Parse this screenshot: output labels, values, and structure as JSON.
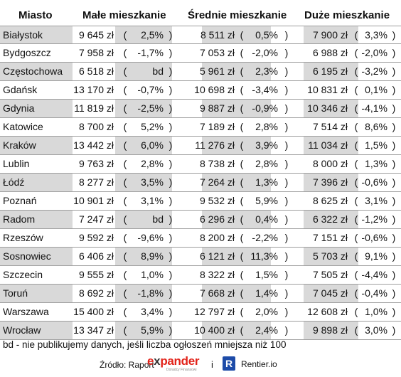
{
  "headers": {
    "city": "Miasto",
    "small": "Małe mieszkanie",
    "medium": "Średnie mieszkanie",
    "large": "Duże mieszkanie"
  },
  "rows": [
    {
      "city": "Białystok",
      "small_price": "9 645 zł",
      "small_change": "2,5%",
      "medium_price": "8 511 zł",
      "medium_change": "0,5%",
      "large_price": "7 900 zł",
      "large_change": "3,3%"
    },
    {
      "city": "Bydgoszcz",
      "small_price": "7 958 zł",
      "small_change": "-1,7%",
      "medium_price": "7 053 zł",
      "medium_change": "-2,0%",
      "large_price": "6 988 zł",
      "large_change": "-2,0%"
    },
    {
      "city": "Częstochowa",
      "small_price": "6 518 zł",
      "small_change": "bd",
      "medium_price": "5 961 zł",
      "medium_change": "2,3%",
      "large_price": "6 195 zł",
      "large_change": "-3,2%"
    },
    {
      "city": "Gdańsk",
      "small_price": "13 170 zł",
      "small_change": "-0,7%",
      "medium_price": "10 698 zł",
      "medium_change": "-3,4%",
      "large_price": "10 831 zł",
      "large_change": "0,1%"
    },
    {
      "city": "Gdynia",
      "small_price": "11 819 zł",
      "small_change": "-2,5%",
      "medium_price": "9 887 zł",
      "medium_change": "-0,9%",
      "large_price": "10 346 zł",
      "large_change": "-4,1%"
    },
    {
      "city": "Katowice",
      "small_price": "8 700 zł",
      "small_change": "5,2%",
      "medium_price": "7 189 zł",
      "medium_change": "2,8%",
      "large_price": "7 514 zł",
      "large_change": "8,6%"
    },
    {
      "city": "Kraków",
      "small_price": "13 442 zł",
      "small_change": "6,0%",
      "medium_price": "11 276 zł",
      "medium_change": "3,9%",
      "large_price": "11 034 zł",
      "large_change": "1,5%"
    },
    {
      "city": "Lublin",
      "small_price": "9 763 zł",
      "small_change": "2,8%",
      "medium_price": "8 738 zł",
      "medium_change": "2,8%",
      "large_price": "8 000 zł",
      "large_change": "1,3%"
    },
    {
      "city": "Łódź",
      "small_price": "8 277 zł",
      "small_change": "3,5%",
      "medium_price": "7 264 zł",
      "medium_change": "1,3%",
      "large_price": "7 396 zł",
      "large_change": "-0,6%"
    },
    {
      "city": "Poznań",
      "small_price": "10 901 zł",
      "small_change": "3,1%",
      "medium_price": "9 532 zł",
      "medium_change": "5,9%",
      "large_price": "8 625 zł",
      "large_change": "3,1%"
    },
    {
      "city": "Radom",
      "small_price": "7 247 zł",
      "small_change": "bd",
      "medium_price": "6 296 zł",
      "medium_change": "0,4%",
      "large_price": "6 322 zł",
      "large_change": "-1,2%"
    },
    {
      "city": "Rzeszów",
      "small_price": "9 592 zł",
      "small_change": "-9,6%",
      "medium_price": "8 200 zł",
      "medium_change": "-2,2%",
      "large_price": "7 151 zł",
      "large_change": "-0,6%"
    },
    {
      "city": "Sosnowiec",
      "small_price": "6 406 zł",
      "small_change": "8,9%",
      "medium_price": "6 121 zł",
      "medium_change": "11,3%",
      "large_price": "5 703 zł",
      "large_change": "9,1%"
    },
    {
      "city": "Szczecin",
      "small_price": "9 555 zł",
      "small_change": "1,0%",
      "medium_price": "8 322 zł",
      "medium_change": "1,5%",
      "large_price": "7 505 zł",
      "large_change": "-4,4%"
    },
    {
      "city": "Toruń",
      "small_price": "8 692 zł",
      "small_change": "-1,8%",
      "medium_price": "7 668 zł",
      "medium_change": "1,4%",
      "large_price": "7 045 zł",
      "large_change": "-0,4%"
    },
    {
      "city": "Warszawa",
      "small_price": "15 400 zł",
      "small_change": "3,4%",
      "medium_price": "12 797 zł",
      "medium_change": "2,0%",
      "large_price": "12 608 zł",
      "large_change": "1,0%"
    },
    {
      "city": "Wrocław",
      "small_price": "13 347 zł",
      "small_change": "5,9%",
      "medium_price": "10 400 zł",
      "medium_change": "2,4%",
      "large_price": "9 898 zł",
      "large_change": "3,0%"
    }
  ],
  "paren_open": "(",
  "paren_close": ")",
  "footnote": "bd - nie publikujemy danych, jeśli liczba ogłoszeń mniejsza niż 100",
  "source": {
    "label": "Źródło: Raport",
    "expander_prefix": "e",
    "expander_x": "x",
    "expander_rest": "pander",
    "expander_sub": "Doradcy Finansowi",
    "conjunction": "i",
    "rentier_icon": "R",
    "rentier_name": "Rentier.io"
  },
  "colors": {
    "shade": "#d9d9d9",
    "rule": "#9e9e9e",
    "expander_red": "#e2231a",
    "rentier_blue": "#1d4ba8"
  }
}
